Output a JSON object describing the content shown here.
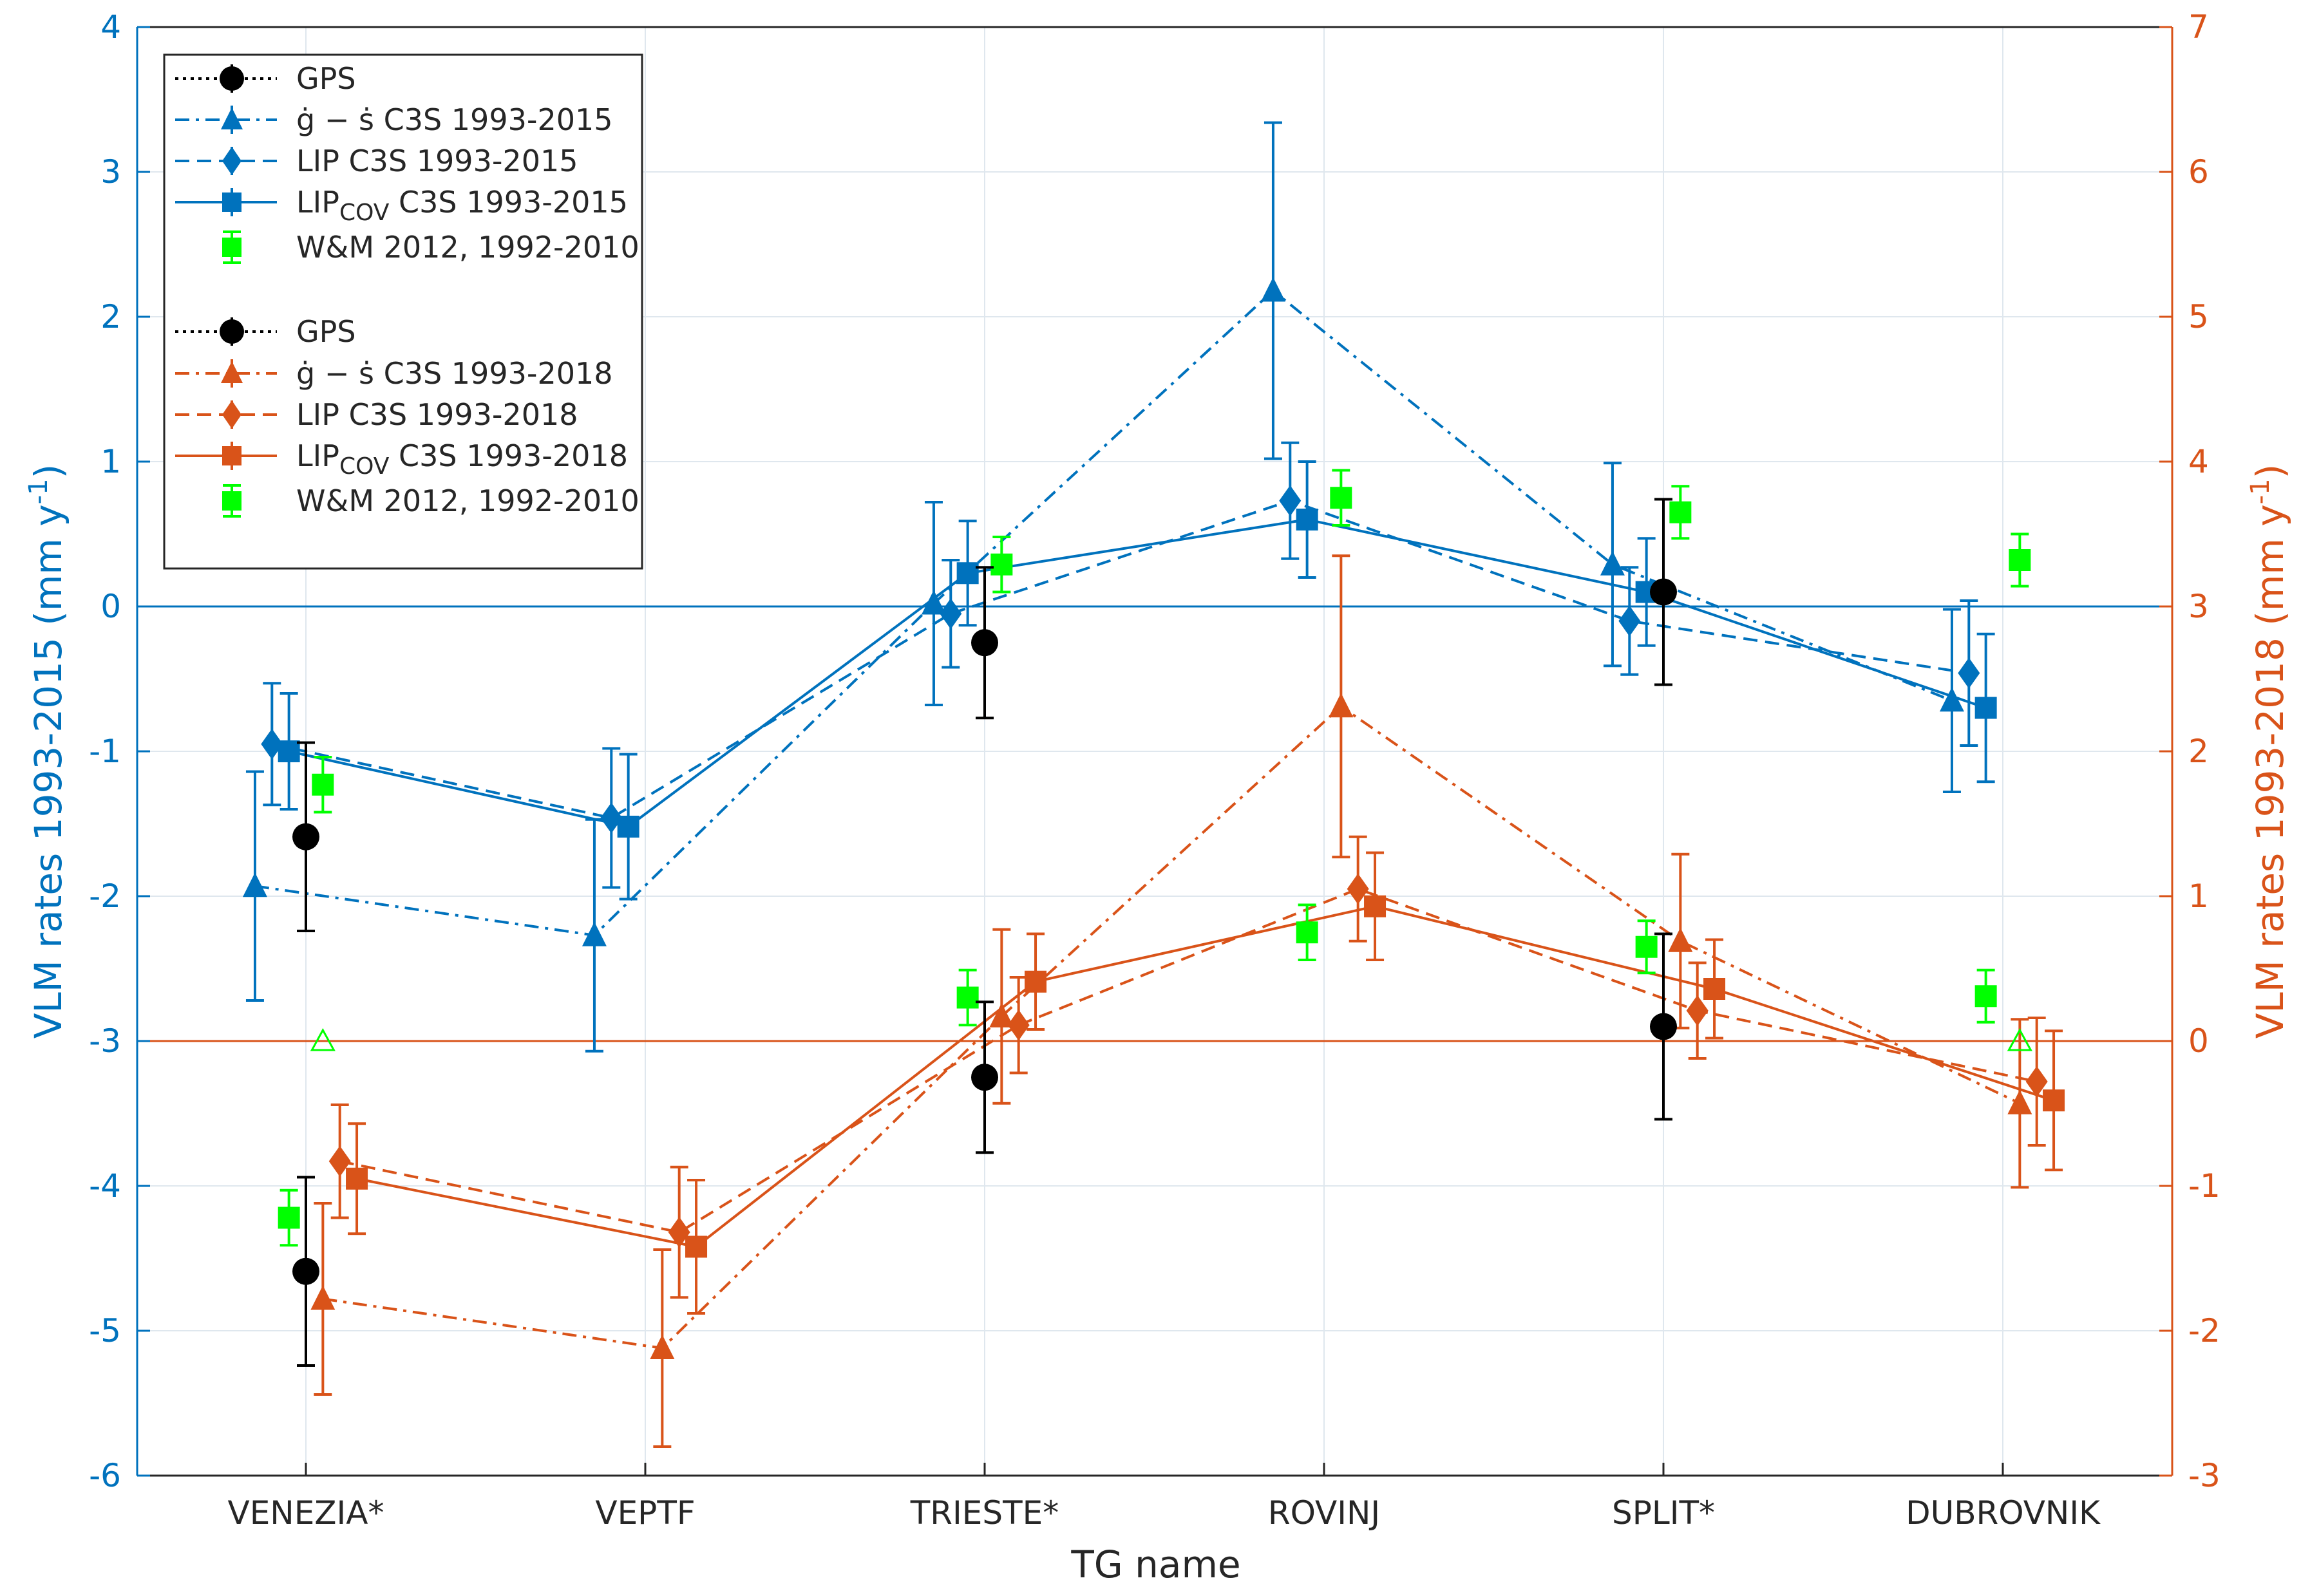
{
  "chart_data": {
    "type": "line",
    "title": "",
    "xlabel": "TG name",
    "ylabel_left": "VLM rates 1993-2015 (mm y",
    "ylabel_right": "VLM rates 1993-2018 (mm y",
    "ylabel_sup": "-1",
    "ylabel_close": ")",
    "ylim_left": [
      -6,
      4
    ],
    "ylim_right": [
      -3,
      7
    ],
    "yticks_left": [
      "-6",
      "-5",
      "-4",
      "-3",
      "-2",
      "-1",
      "0",
      "1",
      "2",
      "3",
      "4"
    ],
    "yticks_right": [
      "-3",
      "-2",
      "-1",
      "0",
      "1",
      "2",
      "3",
      "4",
      "5",
      "6",
      "7"
    ],
    "categories": [
      "VENEZIA*",
      "VEPTF",
      "TRIESTE*",
      "ROVINJ",
      "SPLIT*",
      "DUBROVNIK"
    ],
    "grid": true,
    "legend_position": "top-left",
    "colors": {
      "blue": "#0072BD",
      "orange": "#D95319",
      "green": "#00FF00",
      "black": "#000000",
      "grid": "#dfe7ee"
    },
    "legend": [
      {
        "label": "GPS",
        "color": "#000000",
        "style": "dotted",
        "marker": "circle"
      },
      {
        "label": "ġ − ṡ  C3S 1993-2015",
        "color": "#0072BD",
        "style": "dashdot",
        "marker": "triangle"
      },
      {
        "label": "LIP C3S 1993-2015",
        "color": "#0072BD",
        "style": "dashed",
        "marker": "diamond"
      },
      {
        "label": "LIP",
        "sub": "COV",
        "rest": " C3S 1993-2015",
        "color": "#0072BD",
        "style": "solid",
        "marker": "square"
      },
      {
        "label": "W&M 2012, 1992-2010",
        "color": "#00FF00",
        "style": "none",
        "marker": "square"
      },
      {
        "label": "GPS",
        "color": "#000000",
        "style": "dotted",
        "marker": "circle"
      },
      {
        "label": "ġ − ṡ  C3S 1993-2018",
        "color": "#D95319",
        "style": "dashdot",
        "marker": "triangle"
      },
      {
        "label": "LIP C3S 1993-2018",
        "color": "#D95319",
        "style": "dashed",
        "marker": "diamond"
      },
      {
        "label": "LIP",
        "sub": "COV",
        "rest": " C3S 1993-2018",
        "color": "#D95319",
        "style": "solid",
        "marker": "square"
      },
      {
        "label": "W&M 2012, 1992-2010",
        "color": "#00FF00",
        "style": "none",
        "marker": "square"
      }
    ],
    "series": [
      {
        "axis": "left",
        "color": "#0072BD",
        "marker": "triangle",
        "line": "dashdot",
        "offset": -0.15,
        "values": [
          -1.93,
          -2.27,
          0.02,
          2.18,
          0.29,
          -0.65
        ],
        "err": [
          0.79,
          0.8,
          0.7,
          1.16,
          0.7,
          0.63
        ]
      },
      {
        "axis": "left",
        "color": "#0072BD",
        "marker": "diamond",
        "line": "dashed",
        "offset": -0.1,
        "values": [
          -0.95,
          -1.46,
          -0.05,
          0.73,
          -0.1,
          -0.46
        ],
        "err": [
          0.42,
          0.48,
          0.37,
          0.4,
          0.37,
          0.5
        ]
      },
      {
        "axis": "left",
        "color": "#0072BD",
        "marker": "square",
        "line": "solid",
        "offset": -0.05,
        "values": [
          -1.0,
          -1.52,
          0.23,
          0.6,
          0.1,
          -0.7
        ],
        "err": [
          0.4,
          0.5,
          0.36,
          0.4,
          0.37,
          0.51
        ]
      },
      {
        "axis": "left",
        "color": "#00FF00",
        "marker": "square",
        "line": "none",
        "offset": 0.05,
        "values": [
          -1.23,
          null,
          0.29,
          0.75,
          0.65,
          0.32
        ],
        "err": [
          0.19,
          null,
          0.19,
          0.19,
          0.18,
          0.18
        ]
      },
      {
        "axis": "left",
        "color": "#000000",
        "marker": "circle",
        "line": "none",
        "offset": 0.0,
        "values": [
          -1.59,
          null,
          -0.25,
          null,
          0.1,
          null
        ],
        "err": [
          0.65,
          null,
          0.52,
          null,
          0.64,
          null
        ]
      },
      {
        "axis": "right",
        "color": "#D95319",
        "marker": "triangle",
        "line": "dashdot",
        "offset": 0.05,
        "values": [
          -1.78,
          -2.12,
          0.17,
          2.31,
          0.69,
          -0.43
        ],
        "err": [
          0.66,
          0.68,
          0.6,
          1.04,
          0.6,
          0.58
        ]
      },
      {
        "axis": "right",
        "color": "#D95319",
        "marker": "diamond",
        "line": "dashed",
        "offset": 0.1,
        "values": [
          -0.83,
          -1.32,
          0.11,
          1.05,
          0.21,
          -0.28
        ],
        "err": [
          0.39,
          0.45,
          0.33,
          0.36,
          0.33,
          0.44
        ]
      },
      {
        "axis": "right",
        "color": "#D95319",
        "marker": "square",
        "line": "solid",
        "offset": 0.15,
        "values": [
          -0.95,
          -1.42,
          0.41,
          0.93,
          0.36,
          -0.41
        ],
        "err": [
          0.38,
          0.46,
          0.33,
          0.37,
          0.34,
          0.48
        ]
      },
      {
        "axis": "right",
        "color": "#00FF00",
        "marker": "square",
        "line": "none",
        "offset": -0.05,
        "values": [
          -1.22,
          null,
          0.3,
          0.75,
          0.65,
          0.31
        ],
        "err": [
          0.19,
          null,
          0.19,
          0.19,
          0.18,
          0.18
        ]
      },
      {
        "axis": "right",
        "color": "#000000",
        "marker": "circle",
        "line": "none",
        "offset": 0.0,
        "values": [
          -1.59,
          null,
          -0.25,
          null,
          0.1,
          null
        ],
        "err": [
          0.65,
          null,
          0.52,
          null,
          0.64,
          null
        ]
      },
      {
        "axis": "left",
        "color": "#00FF00",
        "marker": "triangle-open",
        "line": "none",
        "offset": 0.05,
        "values": [
          -3.0,
          null,
          null,
          null,
          null,
          -3.0
        ],
        "err": [
          null,
          null,
          null,
          null,
          null,
          null
        ]
      }
    ]
  }
}
